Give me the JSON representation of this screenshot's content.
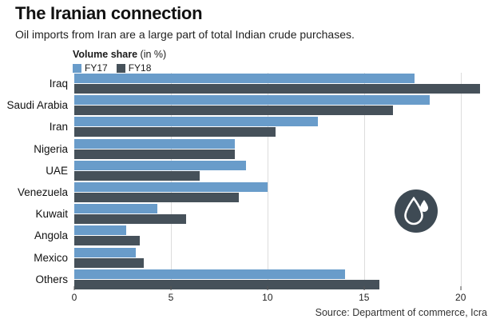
{
  "header": {
    "title": "The Iranian connection",
    "subtitle": "Oil imports from Iran are a large part of total Indian crude purchases."
  },
  "legend": {
    "title": "Volume share",
    "unit": " (in %)",
    "items": [
      {
        "label": "FY17",
        "color": "#699cca"
      },
      {
        "label": "FY18",
        "color": "#46515a"
      }
    ]
  },
  "chart_data": {
    "type": "bar",
    "orientation": "horizontal",
    "title": "The Iranian connection",
    "subtitle": "Oil imports from Iran are a large part of total Indian crude purchases.",
    "legend_title": "Volume share (in %)",
    "legend_position": "top-left",
    "categories": [
      "Iraq",
      "Saudi Arabia",
      "Iran",
      "Nigeria",
      "UAE",
      "Venezuela",
      "Kuwait",
      "Angola",
      "Mexico",
      "Others"
    ],
    "series": [
      {
        "name": "FY17",
        "color": "#699cca",
        "values": [
          17.6,
          18.4,
          12.6,
          8.3,
          8.9,
          10.0,
          4.3,
          2.7,
          3.2,
          14.0
        ]
      },
      {
        "name": "FY18",
        "color": "#46515a",
        "values": [
          21.0,
          16.5,
          10.4,
          8.3,
          6.5,
          8.5,
          5.8,
          3.4,
          3.6,
          15.8
        ]
      }
    ],
    "xlabel": "",
    "ylabel": "",
    "xlim": [
      0,
      21.5
    ],
    "xticks": [
      0,
      5,
      10,
      15,
      20
    ],
    "grid": "vertical"
  },
  "icon": {
    "name": "oil-drops-badge",
    "color": "#3e4a54"
  },
  "footer": {
    "source": "Source: Department of commerce, Icra"
  }
}
